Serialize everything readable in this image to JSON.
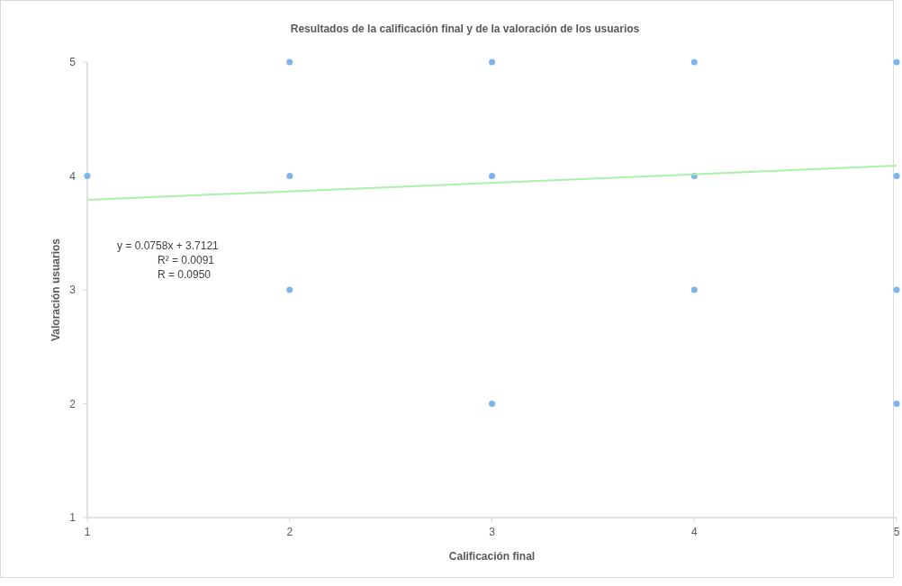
{
  "chart_data": {
    "type": "scatter",
    "title": "Resultados de la calificación final y de la valoración de los usuarios",
    "xlabel": "Calificación final",
    "ylabel": "Valoración usuarios",
    "xlim": [
      1,
      5
    ],
    "ylim": [
      1,
      5
    ],
    "xticks": [
      1,
      2,
      3,
      4,
      5
    ],
    "yticks": [
      1,
      2,
      3,
      4,
      5
    ],
    "grid": false,
    "series": [
      {
        "marker": "circle",
        "color": "#7cb5ec",
        "x": [
          1,
          2,
          2,
          2,
          3,
          3,
          3,
          4,
          4,
          4,
          5,
          5,
          5,
          5
        ],
        "values": [
          4,
          5,
          4,
          3,
          5,
          4,
          2,
          5,
          4,
          3,
          5,
          4,
          3,
          2
        ]
      },
      {
        "type": "line",
        "color": "#a9f0a9",
        "line_style": "solid",
        "x": [
          1,
          5
        ],
        "values": [
          3.79,
          4.09
        ]
      }
    ],
    "annotations": [
      "y = 0.0758x + 3.7121",
      "R² = 0.0091",
      "R = 0.0950"
    ]
  }
}
